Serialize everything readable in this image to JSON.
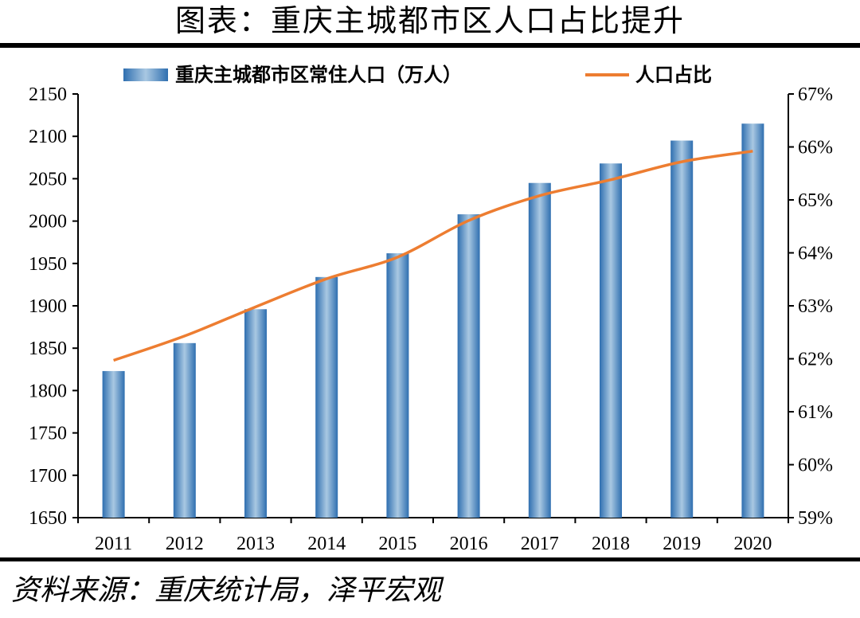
{
  "header": {
    "title": "图表：重庆主城都市区人口占比提升"
  },
  "footer": {
    "source": "资料来源：重庆统计局，泽平宏观"
  },
  "chart_data": {
    "type": "bar+line",
    "categories": [
      "2011",
      "2012",
      "2013",
      "2014",
      "2015",
      "2016",
      "2017",
      "2018",
      "2019",
      "2020"
    ],
    "series": [
      {
        "name": "重庆主城都市区常住人口（万人）",
        "type": "bar",
        "axis": "left",
        "values": [
          1823,
          1856,
          1896,
          1934,
          1962,
          2008,
          2045,
          2068,
          2095,
          2115
        ],
        "color": "#4a8fc4"
      },
      {
        "name": "人口占比",
        "type": "line",
        "axis": "right",
        "values": [
          61.97,
          62.43,
          62.98,
          63.51,
          63.92,
          64.61,
          65.08,
          65.38,
          65.72,
          65.92
        ],
        "color": "#ed7d31"
      }
    ],
    "y_left": {
      "ylim": [
        1650,
        2150
      ],
      "ticks": [
        "1650",
        "1700",
        "1750",
        "1800",
        "1850",
        "1900",
        "1950",
        "2000",
        "2050",
        "2100",
        "2150"
      ]
    },
    "y_right": {
      "ylim": [
        59,
        67
      ],
      "ticks": [
        "59%",
        "60%",
        "61%",
        "62%",
        "63%",
        "64%",
        "65%",
        "66%",
        "67%"
      ]
    },
    "legend": {
      "position": "top-center"
    },
    "grid": false
  }
}
